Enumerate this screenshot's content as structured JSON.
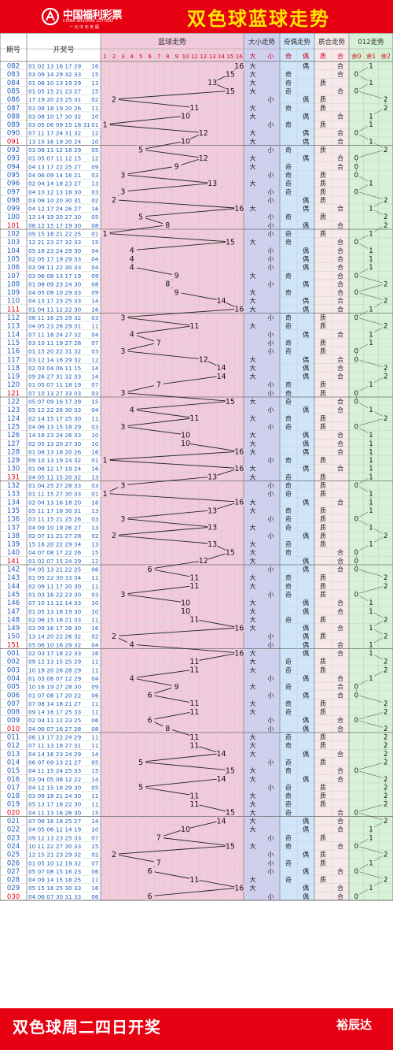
{
  "header": {
    "logo_text": "中国福利彩票",
    "logo_en": "CHINA WELFARE LOTTERY",
    "logo_slogan": "一 元 中 无 务 图",
    "title": "双色球蓝球走势"
  },
  "table_headers": {
    "issue": "期号",
    "draw": "开奖号",
    "blue_trend": "蓝球走势",
    "size_trend": "大小走势",
    "parity_trend": "奇偶走势",
    "prime_trend": "质合走势",
    "mod3_trend": "012走势",
    "blue_cols": [
      "1",
      "2",
      "3",
      "4",
      "5",
      "6",
      "7",
      "8",
      "9",
      "10",
      "11",
      "12",
      "13",
      "14",
      "15",
      "16"
    ],
    "size_cols": [
      "大",
      "小"
    ],
    "parity_cols": [
      "奇",
      "偶"
    ],
    "prime_cols": [
      "质",
      "合"
    ],
    "mod3_cols": [
      "余0",
      "余1",
      "余2"
    ]
  },
  "footer": {
    "left": "双色球周二四日开奖",
    "right": "裕辰达"
  },
  "colors": {
    "brand_red": "#e60012",
    "title_yellow": "#ffe600",
    "issue_blue": "#1f5fbf",
    "issue_red": "#e60012",
    "blue_trend_bg": "#f2cadb",
    "size_bg": "#cfcfef",
    "parity_bg": "#cfe6fa",
    "prime_bg": "#f7e8ea",
    "mod3_bg": "#d6f2d6"
  },
  "chart_data": {
    "type": "table",
    "columns": [
      "期号",
      "开奖号",
      "蓝球"
    ],
    "rows": [
      [
        "082",
        "01 02 13 16 17 29",
        16
      ],
      [
        "083",
        "03 09 14 29 32 33",
        15
      ],
      [
        "084",
        "01 08 10 13 19 29",
        13
      ],
      [
        "085",
        "01 05 15 21 23 27",
        15
      ],
      [
        "086",
        "17 19 20 23 25 31",
        2
      ],
      [
        "087",
        "03 09 18 19 20 26",
        11
      ],
      [
        "088",
        "03 08 10 17 30 32",
        10
      ],
      [
        "089",
        "03 05 06 09 15 18 31",
        1
      ],
      [
        "090",
        "07 11 17 24 31 32",
        12
      ],
      [
        "091",
        "13 15 16 19 20 24",
        10
      ],
      [
        "092",
        "03 08 11 12 18 29",
        5
      ],
      [
        "093",
        "01 05 07 11 12 15",
        12
      ],
      [
        "094",
        "04 13 17 22 25 27",
        9
      ],
      [
        "095",
        "04 06 09 14 16 21",
        3
      ],
      [
        "096",
        "02 04 14 18 23 27",
        13
      ],
      [
        "097",
        "04 10 12 13 18 30",
        3
      ],
      [
        "098",
        "03 08 10 20 30 31",
        2
      ],
      [
        "099",
        "04 12 17 24 26 27",
        16
      ],
      [
        "100",
        "13 14 19 20 27 30",
        5
      ],
      [
        "101",
        "08 12 15 17 19 30",
        8
      ],
      [
        "102",
        "09 15 18 21 22 25",
        1
      ],
      [
        "103",
        "12 21 23 27 32 33",
        15
      ],
      [
        "104",
        "05 16 23 24 29 30",
        4
      ],
      [
        "105",
        "02 05 17 19 29 33",
        4
      ],
      [
        "106",
        "03 08 11 22 30 33",
        4
      ],
      [
        "107",
        "03 06 08 13 17 19",
        9
      ],
      [
        "108",
        "01 08 09 23 24 30",
        8
      ],
      [
        "109",
        "04 05 08 10 29 33",
        9
      ],
      [
        "110",
        "04 13 17 23 25 33",
        14
      ],
      [
        "111",
        "01 04 11 12 22 30",
        16
      ],
      [
        "112",
        "08 11 16 25 29 32",
        3
      ],
      [
        "113",
        "04 05 23 26 29 31",
        11
      ],
      [
        "114",
        "07 11 18 24 27 32",
        4
      ],
      [
        "115",
        "03 10 11 19 27 28",
        7
      ],
      [
        "116",
        "01 15 20 22 31 32",
        3
      ],
      [
        "117",
        "03 12 14 16 29 32",
        12
      ],
      [
        "118",
        "02 03 04 06 11 15",
        14
      ],
      [
        "119",
        "09 26 27 31 32 33",
        14
      ],
      [
        "120",
        "01 05 07 11 18 19",
        7
      ],
      [
        "121",
        "07 10 13 27 33 03",
        3
      ],
      [
        "122",
        "05 07 09 16 17 29",
        15
      ],
      [
        "123",
        "05 12 22 26 30 33",
        4
      ],
      [
        "124",
        "02 14 15 17 25 30",
        11
      ],
      [
        "125",
        "04 06 13 15 18 29",
        3
      ],
      [
        "126",
        "14 18 23 24 26 33",
        10
      ],
      [
        "127",
        "02 05 13 20 27 30",
        10
      ],
      [
        "128",
        "01 08 13 18 20 26",
        16
      ],
      [
        "129",
        "09 10 13 19 24 32",
        1
      ],
      [
        "130",
        "01 08 12 17 19 24",
        16
      ],
      [
        "131",
        "04 05 11 15 20 32",
        13
      ],
      [
        "132",
        "01 04 25 27 28 33",
        3
      ],
      [
        "133",
        "01 11 15 27 30 33",
        1
      ],
      [
        "134",
        "02 04 13 16 18 20",
        16
      ],
      [
        "135",
        "05 11 17 18 30 31",
        13
      ],
      [
        "136",
        "03 11 15 21 25 26",
        3
      ],
      [
        "137",
        "04 09 10 19 26 27",
        13
      ],
      [
        "138",
        "02 07 11 21 27 28",
        2
      ],
      [
        "139",
        "15 16 20 22 29 34",
        13
      ],
      [
        "140",
        "04 07 08 17 22 26",
        15
      ],
      [
        "141",
        "01 02 07 15 24 29",
        12
      ],
      [
        "142",
        "04 05 13 21 22 25",
        6
      ],
      [
        "143",
        "01 05 22 30 33 34",
        11
      ],
      [
        "144",
        "02 09 11 17 20 30",
        11
      ],
      [
        "145",
        "01 03 16 22 23 30",
        3
      ],
      [
        "146",
        "07 10 11 12 14 33",
        10
      ],
      [
        "147",
        "01 05 13 18 19 30",
        10
      ],
      [
        "148",
        "02 06 15 16 21 33",
        11
      ],
      [
        "149",
        "03 09 16 17 28 30",
        16
      ],
      [
        "150",
        "13 14 20 22 26 32",
        2
      ],
      [
        "151",
        "05 06 10 16 29 32",
        4
      ],
      [
        "001",
        "02 03 17 18 22 33",
        16
      ],
      [
        "002",
        "09 12 13 15 25 29",
        11
      ],
      [
        "003",
        "10 19 20 26 28 29",
        11
      ],
      [
        "004",
        "01 03 06 07 12 29",
        4
      ],
      [
        "005",
        "10 16 19 27 28 30",
        9
      ],
      [
        "006",
        "01 07 08 17 20 22",
        6
      ],
      [
        "007",
        "07 08 14 18 21 27",
        11
      ],
      [
        "008",
        "09 14 16 17 25 33",
        11
      ],
      [
        "009",
        "02 04 11 12 23 25",
        6
      ],
      [
        "010",
        "04 06 07 16 27 28",
        8
      ],
      [
        "011",
        "06 13 17 22 24 29",
        11
      ],
      [
        "012",
        "07 11 13 18 27 31",
        11
      ],
      [
        "013",
        "04 14 16 23 24 29",
        14
      ],
      [
        "014",
        "06 07 09 13 21 27",
        5
      ],
      [
        "015",
        "04 11 15 24 25 33",
        15
      ],
      [
        "016",
        "03 04 05 08 12 22",
        14
      ],
      [
        "017",
        "04 12 15 18 29 30",
        5
      ],
      [
        "018",
        "03 09 18 21 24 30",
        11
      ],
      [
        "019",
        "05 13 17 18 22 30",
        11
      ],
      [
        "020",
        "04 11 13 16 26 30",
        15
      ],
      [
        "021",
        "07 08 16 18 25 27",
        14
      ],
      [
        "022",
        "04 05 06 12 14 19",
        10
      ],
      [
        "023",
        "09 12 13 23 25 33",
        7
      ],
      [
        "024",
        "10 11 22 27 30 33",
        15
      ],
      [
        "025",
        "12 15 21 23 29 32",
        2
      ],
      [
        "026",
        "01 05 10 12 19 32",
        7
      ],
      [
        "027",
        "05 07 08 15 16 23",
        6
      ],
      [
        "028",
        "04 09 14 15 18 25",
        11
      ],
      [
        "029",
        "05 15 16 25 30 33",
        16
      ],
      [
        "030",
        "04 06 07 30 31 33",
        6
      ]
    ]
  }
}
